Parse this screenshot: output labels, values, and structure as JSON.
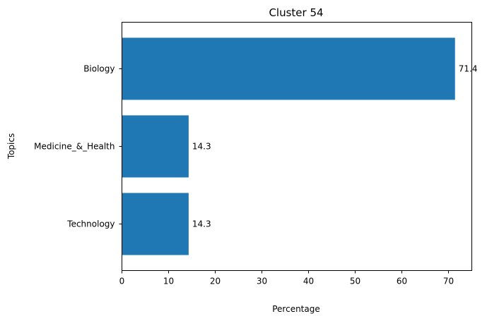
{
  "chart_data": {
    "type": "bar",
    "orientation": "horizontal",
    "title": "Cluster 54",
    "xlabel": "Percentage",
    "ylabel": "Topics",
    "categories": [
      "Biology",
      "Medicine_&_Health",
      "Technology"
    ],
    "values": [
      71.4,
      14.3,
      14.3
    ],
    "data_labels": [
      "71.4",
      "14.3",
      "14.3"
    ],
    "xlim": [
      0,
      75
    ],
    "xticks": [
      0,
      10,
      20,
      30,
      40,
      50,
      60,
      70
    ],
    "grid": false,
    "legend": "none",
    "bar_color": "#1f77b4"
  }
}
